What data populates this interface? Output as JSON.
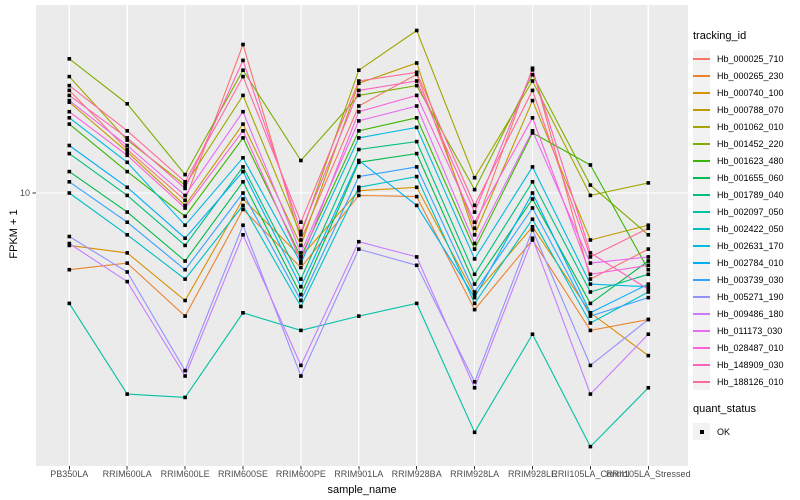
{
  "figure": {
    "y_axis": {
      "title": "FPKM + 1",
      "tick_label": "10"
    },
    "x_axis": {
      "title": "sample_name"
    },
    "legend": {
      "tracking_title": "tracking_id",
      "quant_title": "quant_status",
      "quant_items": [
        {
          "label": "OK",
          "marker": "black-square-point"
        }
      ]
    },
    "colors": {
      "panel_bg": "#EBEBEB",
      "gridline": "#FFFFFF",
      "legend_key_bg": "#F2F2F2",
      "axis_text": "#4D4D4D",
      "tick_mark": "#333333",
      "point": "#000000"
    }
  },
  "chart_data": {
    "type": "line",
    "title": "",
    "xlabel": "sample_name",
    "ylabel": "FPKM + 1",
    "y_scale": "log10",
    "y_ticks": [
      10
    ],
    "ylim": [
      0.975,
      49.7
    ],
    "grid": "major",
    "legend_position": "right",
    "point_marker": "small black square (quant_status OK)",
    "categories": [
      "PB350LA",
      "RRIM600LA",
      "RRIM600LE",
      "RRIM600SE",
      "RRIM600PE",
      "RRIM901LA",
      "RRIM928BA",
      "RRIM928LA",
      "RRIM928LE",
      "RRII105LA_Control",
      "RRII105LA_Stressed"
    ],
    "series": [
      {
        "name": "Hb_000025_710",
        "color": "#F8766D",
        "values": [
          24,
          14.5,
          9.4,
          35.5,
          6.7,
          21,
          27.5,
          7.4,
          29,
          4.8,
          6.2
        ]
      },
      {
        "name": "Hb_000265_230",
        "color": "#EA8331",
        "values": [
          5.2,
          5.5,
          3.5,
          8.7,
          5.3,
          9.8,
          9.7,
          3.7,
          6.7,
          3.1,
          3.4
        ]
      },
      {
        "name": "Hb_000740_100",
        "color": "#D89000",
        "values": [
          6.4,
          6.0,
          4.0,
          9.5,
          5.8,
          10.2,
          10.5,
          4.2,
          7.5,
          3.6,
          2.5
        ]
      },
      {
        "name": "Hb_000788_070",
        "color": "#C09B00",
        "values": [
          21.7,
          14.2,
          9.0,
          18,
          6.4,
          25.5,
          30.3,
          7.0,
          22,
          6.7,
          7.6
        ]
      },
      {
        "name": "Hb_001062_010",
        "color": "#A3A500",
        "values": [
          27,
          15.7,
          10.7,
          23,
          7.0,
          28.5,
          40,
          11.4,
          26,
          9.8,
          10.9
        ]
      },
      {
        "name": "Hb_001452_220",
        "color": "#7CAE00",
        "values": [
          31.4,
          21.4,
          11.7,
          28.5,
          13.2,
          23,
          25,
          10.3,
          27.4,
          10.7,
          7.0
        ]
      },
      {
        "name": "Hb_001623_480",
        "color": "#39B600",
        "values": [
          18,
          12,
          8.2,
          16,
          5.8,
          17,
          19,
          6.2,
          16.7,
          12.7,
          5.2
        ]
      },
      {
        "name": "Hb_001655_060",
        "color": "#00BB4E",
        "values": [
          12,
          8.5,
          5.6,
          11,
          4.2,
          13,
          14,
          4.6,
          9.5,
          3.9,
          5.6
        ]
      },
      {
        "name": "Hb_001789_040",
        "color": "#00BF7D",
        "values": [
          14,
          9.8,
          6.4,
          12.5,
          4.8,
          14.5,
          15.5,
          5.0,
          11,
          4.3,
          5.0
        ]
      },
      {
        "name": "Hb_002097_050",
        "color": "#00C1A3",
        "values": [
          3.9,
          1.8,
          1.75,
          3.6,
          3.1,
          3.5,
          3.9,
          1.3,
          3.0,
          1.15,
          1.9
        ]
      },
      {
        "name": "Hb_002422_050",
        "color": "#00BFC4",
        "values": [
          10,
          7.0,
          4.8,
          9.0,
          3.8,
          10.5,
          11.5,
          3.9,
          8.0,
          3.3,
          4.3
        ]
      },
      {
        "name": "Hb_002631_170",
        "color": "#00BAE0",
        "values": [
          19,
          13,
          7.6,
          13.5,
          5.5,
          16,
          17.5,
          5.7,
          12.5,
          4.6,
          4.5
        ]
      },
      {
        "name": "Hb_002784_010",
        "color": "#00B0F6",
        "values": [
          15,
          10.5,
          6.8,
          12,
          4.5,
          13.2,
          9.0,
          4.1,
          10,
          3.6,
          4.6
        ]
      },
      {
        "name": "Hb_003739_030",
        "color": "#35A2FF",
        "values": [
          11,
          7.8,
          5.2,
          10,
          4.0,
          11.5,
          12.5,
          4.3,
          8.8,
          3.5,
          4.1
        ]
      },
      {
        "name": "Hb_005271_190",
        "color": "#9590FF",
        "values": [
          6.9,
          5.1,
          2.2,
          7.6,
          2.1,
          6.2,
          5.4,
          2.0,
          7.3,
          2.3,
          3.4
        ]
      },
      {
        "name": "Hb_009486_180",
        "color": "#C77CFF",
        "values": [
          6.5,
          4.7,
          2.1,
          7.0,
          2.3,
          6.6,
          5.8,
          1.9,
          6.8,
          1.8,
          3.0
        ]
      },
      {
        "name": "Hb_011173_030",
        "color": "#E76BF3",
        "values": [
          22,
          15,
          9.8,
          20,
          6.0,
          18.5,
          21,
          6.5,
          17,
          5.5,
          5.8
        ]
      },
      {
        "name": "Hb_028487_010",
        "color": "#FA62DB",
        "values": [
          20,
          13.8,
          8.8,
          17,
          5.6,
          20,
          23,
          7.8,
          19,
          5.0,
          5.4
        ]
      },
      {
        "name": "Hb_148909_030",
        "color": "#FF62BC",
        "values": [
          23,
          16,
          10.4,
          31,
          7.2,
          24,
          26,
          8.5,
          28.6,
          6.0,
          4.4
        ]
      },
      {
        "name": "Hb_188126_010",
        "color": "#FF6A98",
        "values": [
          25,
          17,
          11,
          27,
          7.8,
          26,
          28,
          9.0,
          24,
          5.8,
          7.4
        ]
      }
    ]
  }
}
